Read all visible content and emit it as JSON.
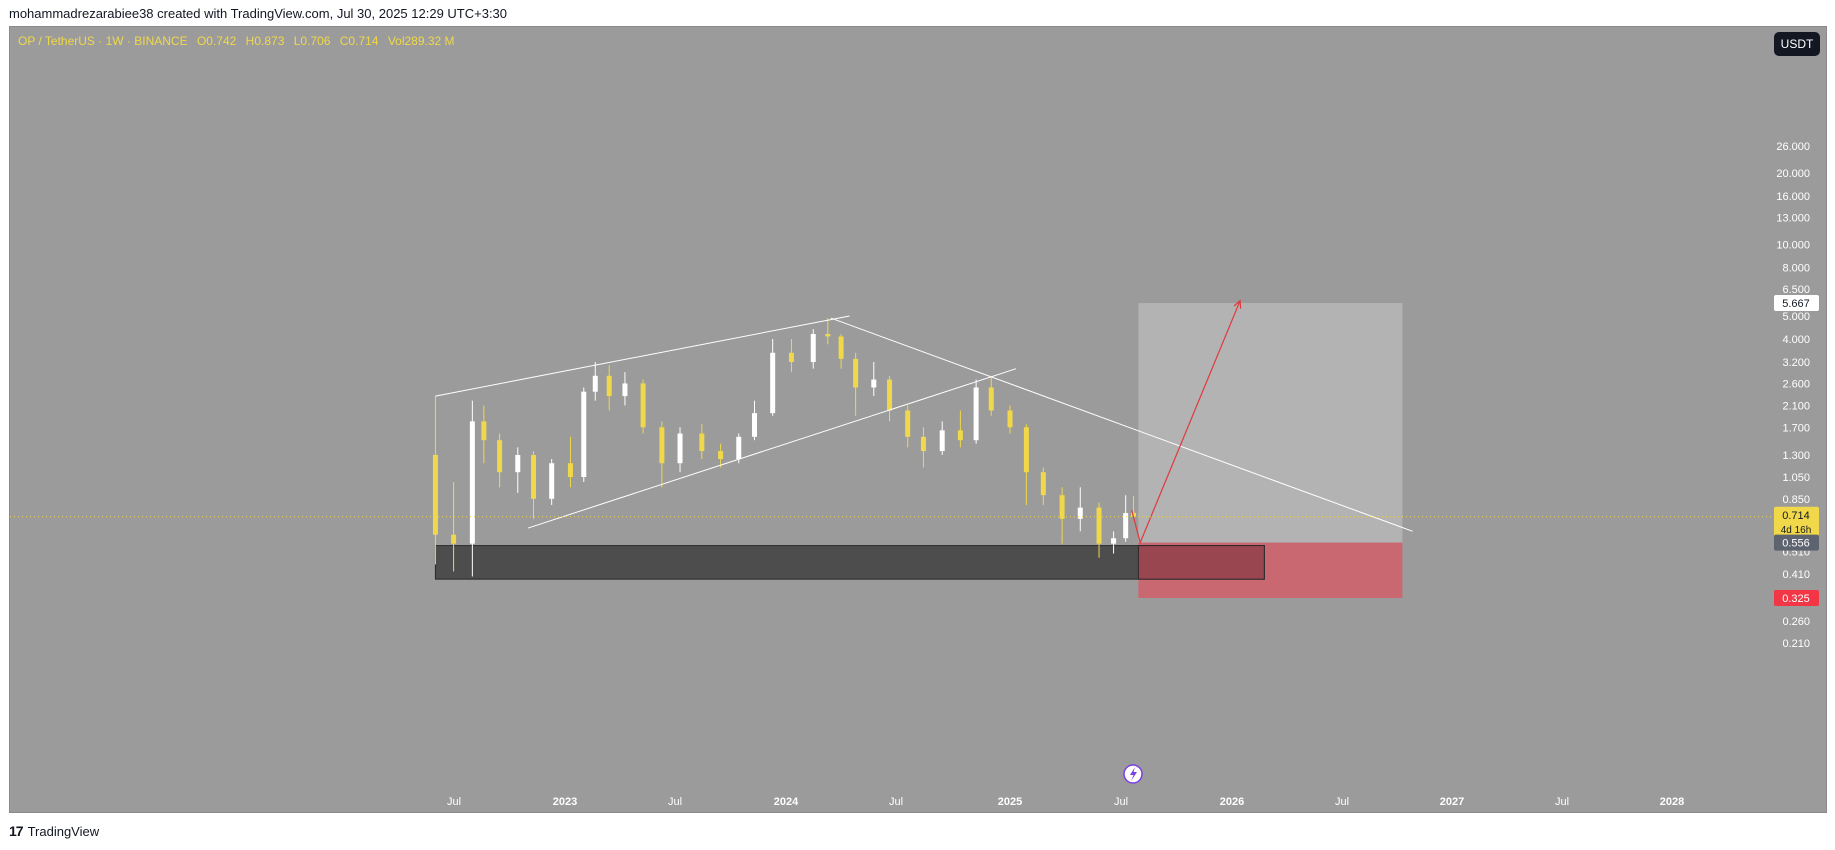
{
  "header": {
    "attribution": "mohammadrezarabiee38 created with TradingView.com, Jul 30, 2025 12:29 UTC+3:30"
  },
  "symbol": {
    "title": "OP / TetherUS · 1W · BINANCE",
    "open": "O0.742",
    "high": "H0.873",
    "low": "L0.706",
    "close": "C0.714",
    "volume": "Vol289.32 M"
  },
  "currency_button": "USDT",
  "footer": {
    "logo": "17",
    "brand": "TradingView"
  },
  "colors": {
    "background": "#9b9b9b",
    "candle_up": "#ffffff",
    "candle_down": "#f0d84a",
    "current_price": "#f0d84a",
    "target_zone": "#b3b3b3",
    "stop_zone": "#c96870",
    "support_zone": "#4d4d4d",
    "arrow": "#e0393e"
  },
  "chart_data": {
    "type": "candlestick",
    "scale": "log",
    "ylim": [
      0.19,
      28
    ],
    "price_ticks": [
      "26.000",
      "20.000",
      "16.000",
      "13.000",
      "10.000",
      "8.000",
      "6.500",
      "5.000",
      "4.000",
      "3.200",
      "2.600",
      "2.100",
      "1.700",
      "1.300",
      "1.050",
      "0.850",
      "0.510",
      "0.410",
      "0.260",
      "0.210"
    ],
    "time_ticks": [
      "Jul",
      "2023",
      "Jul",
      "2024",
      "Jul",
      "2025",
      "Jul",
      "2026",
      "Jul",
      "2027",
      "Jul",
      "2028"
    ],
    "price_labels": [
      {
        "value": 5.667,
        "text": "5.667",
        "role": "target"
      },
      {
        "value": 0.714,
        "text": "0.714",
        "sub": "4d 16h",
        "role": "current"
      },
      {
        "value": 0.556,
        "text": "0.556",
        "role": "entry"
      },
      {
        "value": 0.325,
        "text": "0.325",
        "role": "stop"
      }
    ],
    "current_price": 0.714,
    "series": [
      {
        "date": "2022-06-01",
        "o": 1.3,
        "h": 2.3,
        "l": 0.45,
        "c": 0.6
      },
      {
        "date": "2022-07-01",
        "o": 0.6,
        "h": 1.0,
        "l": 0.42,
        "c": 0.55
      },
      {
        "date": "2022-08-01",
        "o": 0.55,
        "h": 2.2,
        "l": 0.4,
        "c": 1.8
      },
      {
        "date": "2022-08-20",
        "o": 1.8,
        "h": 2.1,
        "l": 1.2,
        "c": 1.5
      },
      {
        "date": "2022-09-15",
        "o": 1.5,
        "h": 1.6,
        "l": 0.95,
        "c": 1.1
      },
      {
        "date": "2022-10-15",
        "o": 1.1,
        "h": 1.4,
        "l": 0.9,
        "c": 1.3
      },
      {
        "date": "2022-11-10",
        "o": 1.3,
        "h": 1.35,
        "l": 0.7,
        "c": 0.85
      },
      {
        "date": "2022-12-10",
        "o": 0.85,
        "h": 1.25,
        "l": 0.8,
        "c": 1.2
      },
      {
        "date": "2023-01-10",
        "o": 1.2,
        "h": 1.55,
        "l": 0.95,
        "c": 1.05
      },
      {
        "date": "2023-02-01",
        "o": 1.05,
        "h": 2.5,
        "l": 1.0,
        "c": 2.4
      },
      {
        "date": "2023-02-20",
        "o": 2.4,
        "h": 3.2,
        "l": 2.2,
        "c": 2.8
      },
      {
        "date": "2023-03-15",
        "o": 2.8,
        "h": 3.1,
        "l": 2.0,
        "c": 2.3
      },
      {
        "date": "2023-04-10",
        "o": 2.3,
        "h": 2.9,
        "l": 2.1,
        "c": 2.6
      },
      {
        "date": "2023-05-10",
        "o": 2.6,
        "h": 2.7,
        "l": 1.6,
        "c": 1.7
      },
      {
        "date": "2023-06-10",
        "o": 1.7,
        "h": 1.8,
        "l": 0.95,
        "c": 1.2
      },
      {
        "date": "2023-07-10",
        "o": 1.2,
        "h": 1.7,
        "l": 1.1,
        "c": 1.6
      },
      {
        "date": "2023-08-15",
        "o": 1.6,
        "h": 1.75,
        "l": 1.25,
        "c": 1.35
      },
      {
        "date": "2023-09-15",
        "o": 1.35,
        "h": 1.45,
        "l": 1.15,
        "c": 1.25
      },
      {
        "date": "2023-10-15",
        "o": 1.25,
        "h": 1.6,
        "l": 1.2,
        "c": 1.55
      },
      {
        "date": "2023-11-10",
        "o": 1.55,
        "h": 2.2,
        "l": 1.5,
        "c": 1.95
      },
      {
        "date": "2023-12-10",
        "o": 1.95,
        "h": 4.0,
        "l": 1.9,
        "c": 3.5
      },
      {
        "date": "2024-01-10",
        "o": 3.5,
        "h": 4.0,
        "l": 2.9,
        "c": 3.2
      },
      {
        "date": "2024-02-15",
        "o": 3.2,
        "h": 4.4,
        "l": 3.0,
        "c": 4.2
      },
      {
        "date": "2024-03-10",
        "o": 4.2,
        "h": 4.9,
        "l": 3.8,
        "c": 4.1
      },
      {
        "date": "2024-04-01",
        "o": 4.1,
        "h": 4.2,
        "l": 3.0,
        "c": 3.3
      },
      {
        "date": "2024-04-25",
        "o": 3.3,
        "h": 3.5,
        "l": 1.9,
        "c": 2.5
      },
      {
        "date": "2024-05-25",
        "o": 2.5,
        "h": 3.2,
        "l": 2.3,
        "c": 2.7
      },
      {
        "date": "2024-06-20",
        "o": 2.7,
        "h": 2.8,
        "l": 1.8,
        "c": 2.0
      },
      {
        "date": "2024-07-20",
        "o": 2.0,
        "h": 2.1,
        "l": 1.4,
        "c": 1.55
      },
      {
        "date": "2024-08-15",
        "o": 1.55,
        "h": 1.7,
        "l": 1.15,
        "c": 1.35
      },
      {
        "date": "2024-09-15",
        "o": 1.35,
        "h": 1.8,
        "l": 1.3,
        "c": 1.65
      },
      {
        "date": "2024-10-15",
        "o": 1.65,
        "h": 2.0,
        "l": 1.4,
        "c": 1.5
      },
      {
        "date": "2024-11-10",
        "o": 1.5,
        "h": 2.7,
        "l": 1.45,
        "c": 2.5
      },
      {
        "date": "2024-12-05",
        "o": 2.5,
        "h": 2.8,
        "l": 1.9,
        "c": 2.0
      },
      {
        "date": "2025-01-05",
        "o": 2.0,
        "h": 2.1,
        "l": 1.6,
        "c": 1.7
      },
      {
        "date": "2025-02-01",
        "o": 1.7,
        "h": 1.75,
        "l": 0.8,
        "c": 1.1
      },
      {
        "date": "2025-03-01",
        "o": 1.1,
        "h": 1.15,
        "l": 0.8,
        "c": 0.88
      },
      {
        "date": "2025-04-01",
        "o": 0.88,
        "h": 0.95,
        "l": 0.55,
        "c": 0.7
      },
      {
        "date": "2025-05-01",
        "o": 0.7,
        "h": 0.95,
        "l": 0.62,
        "c": 0.78
      },
      {
        "date": "2025-06-01",
        "o": 0.78,
        "h": 0.82,
        "l": 0.48,
        "c": 0.55
      },
      {
        "date": "2025-06-25",
        "o": 0.55,
        "h": 0.62,
        "l": 0.5,
        "c": 0.58
      },
      {
        "date": "2025-07-15",
        "o": 0.58,
        "h": 0.88,
        "l": 0.56,
        "c": 0.74
      },
      {
        "date": "2025-07-28",
        "o": 0.742,
        "h": 0.873,
        "l": 0.706,
        "c": 0.714
      }
    ],
    "drawings": {
      "support_zone": {
        "from": "2022-06-01",
        "to": "2026-03-01",
        "top": 0.54,
        "bottom": 0.39
      },
      "target_zone": {
        "from": "2025-08-05",
        "to": "2026-10-15",
        "top": 5.667,
        "bottom": 0.556
      },
      "stop_zone": {
        "from": "2025-08-05",
        "to": "2026-10-15",
        "top": 0.556,
        "bottom": 0.325
      },
      "trendlines": [
        {
          "name": "upper-channel-line",
          "from": [
            "2022-06-01",
            2.3
          ],
          "to": [
            "2024-04-15",
            5.0
          ]
        },
        {
          "name": "lower-channel-line",
          "from": [
            "2022-11-01",
            0.64
          ],
          "to": [
            "2025-01-15",
            3.0
          ]
        },
        {
          "name": "descending-resistance-line",
          "from": [
            "2024-03-15",
            4.9
          ],
          "to": [
            "2026-11-01",
            0.62
          ]
        }
      ],
      "projection_arrow": [
        [
          "2025-07-25",
          0.76
        ],
        [
          "2025-08-08",
          0.556
        ],
        [
          "2026-01-20",
          5.8
        ]
      ]
    }
  }
}
